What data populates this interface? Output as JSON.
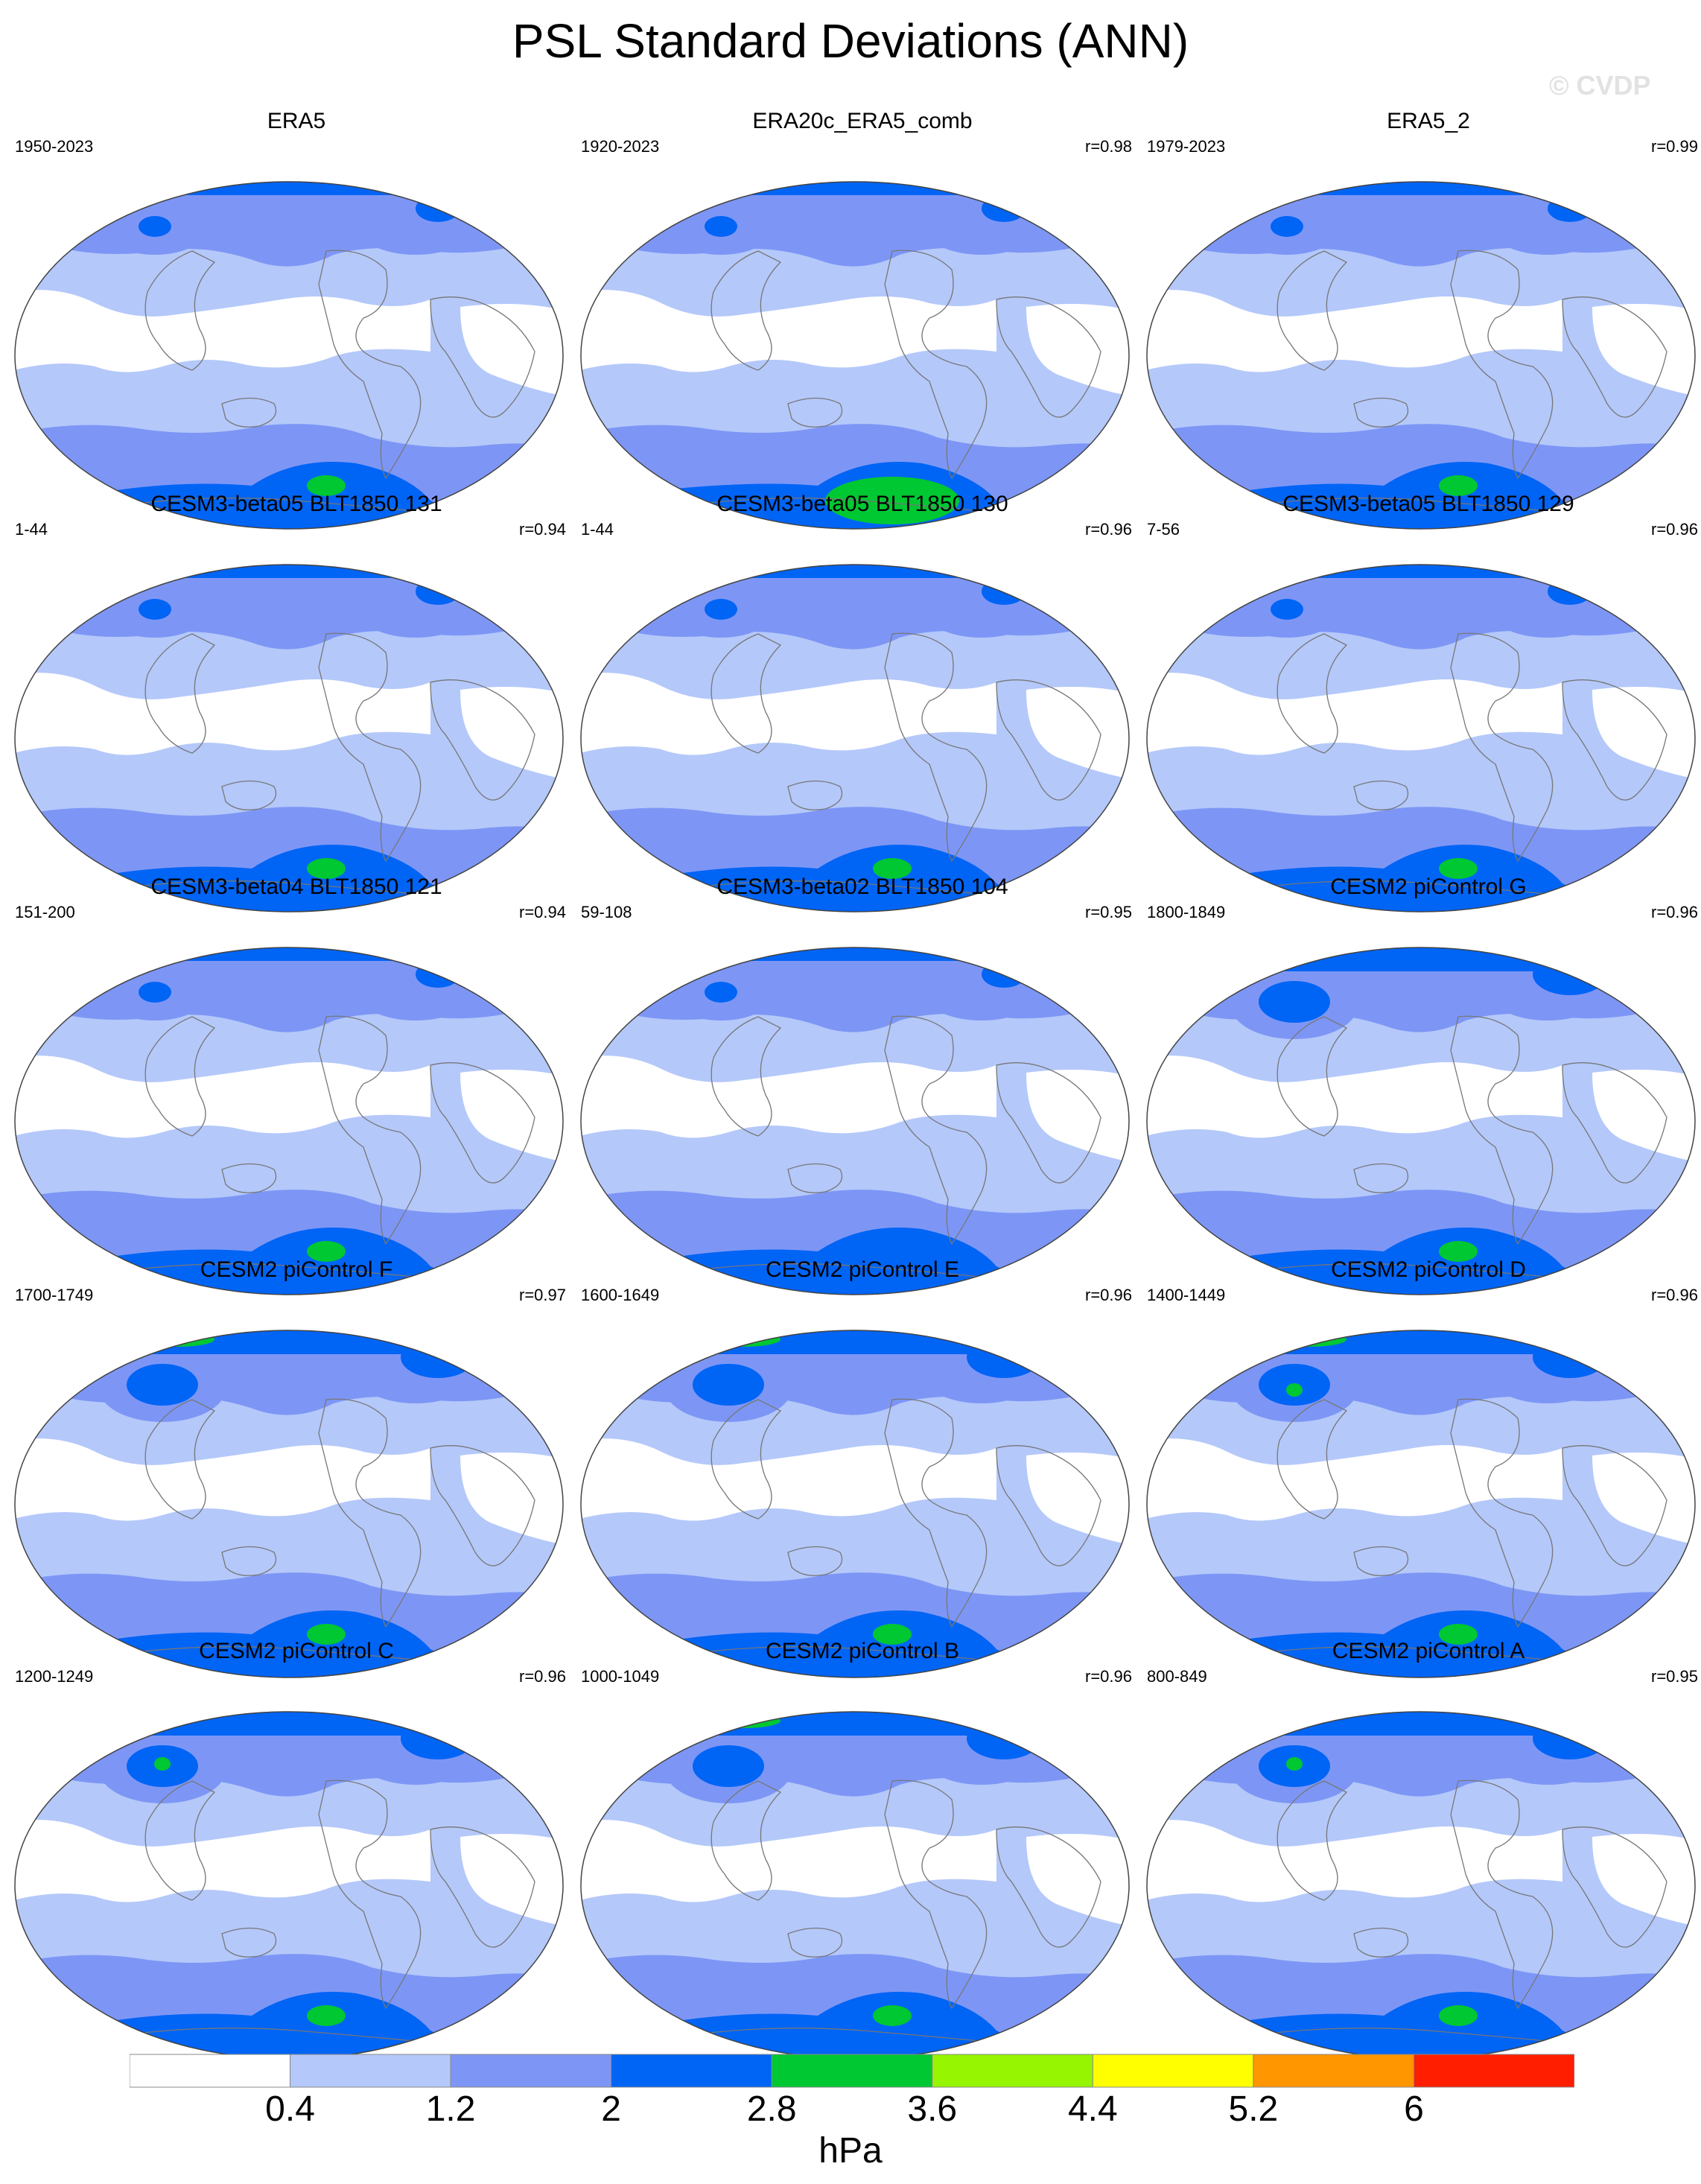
{
  "title": "PSL Standard Deviations (ANN)",
  "watermark": "© CVDP",
  "panels": [
    {
      "title": "ERA5",
      "period": "1950-2023",
      "r": ""
    },
    {
      "title": "ERA20c_ERA5_comb",
      "period": "1920-2023",
      "r": "r=0.98"
    },
    {
      "title": "ERA5_2",
      "period": "1979-2023",
      "r": "r=0.99"
    },
    {
      "title": "CESM3-beta05 BLT1850 131",
      "period": "1-44",
      "r": "r=0.94"
    },
    {
      "title": "CESM3-beta05 BLT1850 130",
      "period": "1-44",
      "r": "r=0.96"
    },
    {
      "title": "CESM3-beta05 BLT1850 129",
      "period": "7-56",
      "r": "r=0.96"
    },
    {
      "title": "CESM3-beta04 BLT1850 121",
      "period": "151-200",
      "r": "r=0.94"
    },
    {
      "title": "CESM3-beta02 BLT1850 104",
      "period": "59-108",
      "r": "r=0.95"
    },
    {
      "title": "CESM2 piControl G",
      "period": "1800-1849",
      "r": "r=0.96"
    },
    {
      "title": "CESM2 piControl F",
      "period": "1700-1749",
      "r": "r=0.97"
    },
    {
      "title": "CESM2 piControl E",
      "period": "1600-1649",
      "r": "r=0.96"
    },
    {
      "title": "CESM2 piControl D",
      "period": "1400-1449",
      "r": "r=0.96"
    },
    {
      "title": "CESM2 piControl C",
      "period": "1200-1249",
      "r": "r=0.96"
    },
    {
      "title": "CESM2 piControl B",
      "period": "1000-1049",
      "r": "r=0.96"
    },
    {
      "title": "CESM2 piControl A",
      "period": "800-849",
      "r": "r=0.95"
    }
  ],
  "colorbar": {
    "colors": [
      "#ffffff",
      "#b4c8fa",
      "#7d96f5",
      "#0064f5",
      "#00c832",
      "#96f500",
      "#ffff00",
      "#ff9600",
      "#ff1e00"
    ],
    "labels": [
      "0.4",
      "1.2",
      "2",
      "2.8",
      "3.6",
      "4.4",
      "5.2",
      "6"
    ],
    "units": "hPa"
  }
}
